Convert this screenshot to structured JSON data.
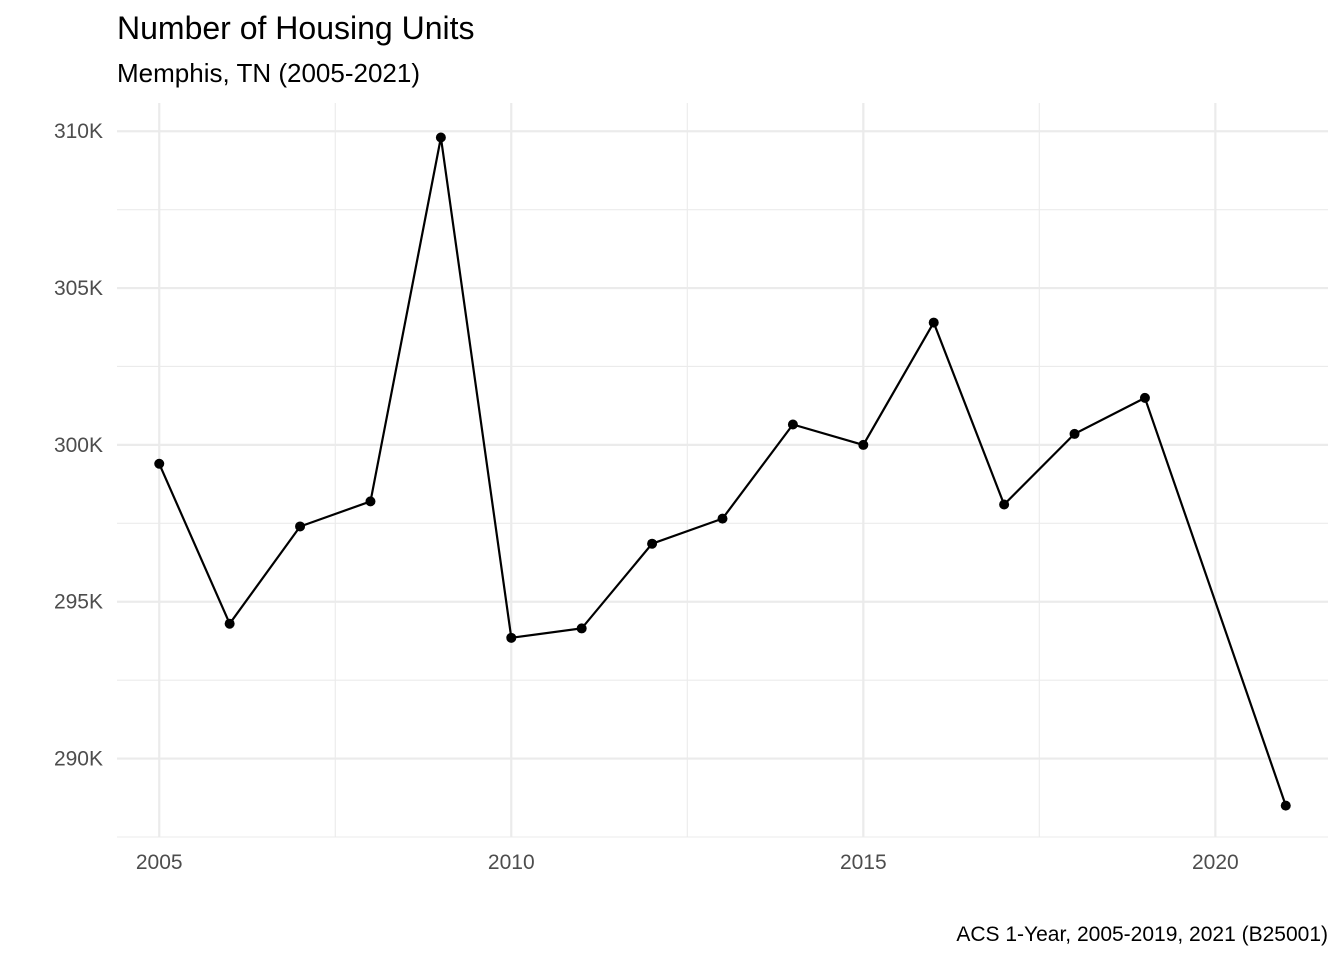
{
  "chart_data": {
    "type": "line",
    "title": "Number of Housing Units",
    "subtitle": "Memphis, TN (2005-2021)",
    "caption": "ACS 1-Year, 2005-2019, 2021 (B25001)",
    "xlabel": "",
    "ylabel": "",
    "x": [
      2005,
      2006,
      2007,
      2008,
      2009,
      2010,
      2011,
      2012,
      2013,
      2014,
      2015,
      2016,
      2017,
      2018,
      2019,
      2021
    ],
    "series": [
      {
        "values": [
          299400,
          294300,
          297400,
          298200,
          309800,
          293850,
          294150,
          296850,
          297650,
          300650,
          300000,
          303900,
          298100,
          300350,
          301500,
          288500
        ]
      }
    ],
    "xlim": [
      2004.4,
      2021.6
    ],
    "ylim": [
      287500,
      310900
    ],
    "x_ticks": [
      2005,
      2010,
      2015,
      2020
    ],
    "x_tick_labels": [
      "2005",
      "2010",
      "2015",
      "2020"
    ],
    "y_ticks": [
      290000,
      295000,
      300000,
      305000,
      310000
    ],
    "y_tick_labels": [
      "290K",
      "295K",
      "300K",
      "305K",
      "310K"
    ],
    "grid": true,
    "legend": "none",
    "colors": {
      "line": "#000000",
      "grid": "#ebebeb",
      "tick_text": "#4d4d4d"
    }
  }
}
